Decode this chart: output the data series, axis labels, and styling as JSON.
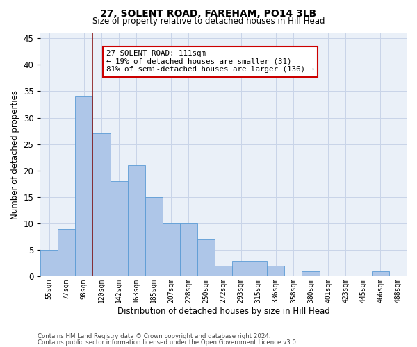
{
  "title": "27, SOLENT ROAD, FAREHAM, PO14 3LB",
  "subtitle": "Size of property relative to detached houses in Hill Head",
  "xlabel": "Distribution of detached houses by size in Hill Head",
  "ylabel": "Number of detached properties",
  "footer1": "Contains HM Land Registry data © Crown copyright and database right 2024.",
  "footer2": "Contains public sector information licensed under the Open Government Licence v3.0.",
  "annotation_line1": "27 SOLENT ROAD: 111sqm",
  "annotation_line2": "← 19% of detached houses are smaller (31)",
  "annotation_line3": "81% of semi-detached houses are larger (136) →",
  "bar_labels": [
    "55sqm",
    "77sqm",
    "98sqm",
    "120sqm",
    "142sqm",
    "163sqm",
    "185sqm",
    "207sqm",
    "228sqm",
    "250sqm",
    "272sqm",
    "293sqm",
    "315sqm",
    "336sqm",
    "358sqm",
    "380sqm",
    "401sqm",
    "423sqm",
    "445sqm",
    "466sqm",
    "488sqm"
  ],
  "bar_values": [
    5,
    9,
    34,
    27,
    18,
    21,
    15,
    10,
    10,
    7,
    2,
    3,
    3,
    2,
    0,
    1,
    0,
    0,
    0,
    1,
    0
  ],
  "bar_color": "#aec6e8",
  "bar_edge_color": "#5b9bd5",
  "grid_color": "#c8d4e8",
  "bg_color": "#eaf0f8",
  "vline_x": 2.5,
  "vline_color": "#8b1a1a",
  "annotation_box_color": "#cc0000",
  "ylim": [
    0,
    46
  ],
  "yticks": [
    0,
    5,
    10,
    15,
    20,
    25,
    30,
    35,
    40,
    45
  ]
}
